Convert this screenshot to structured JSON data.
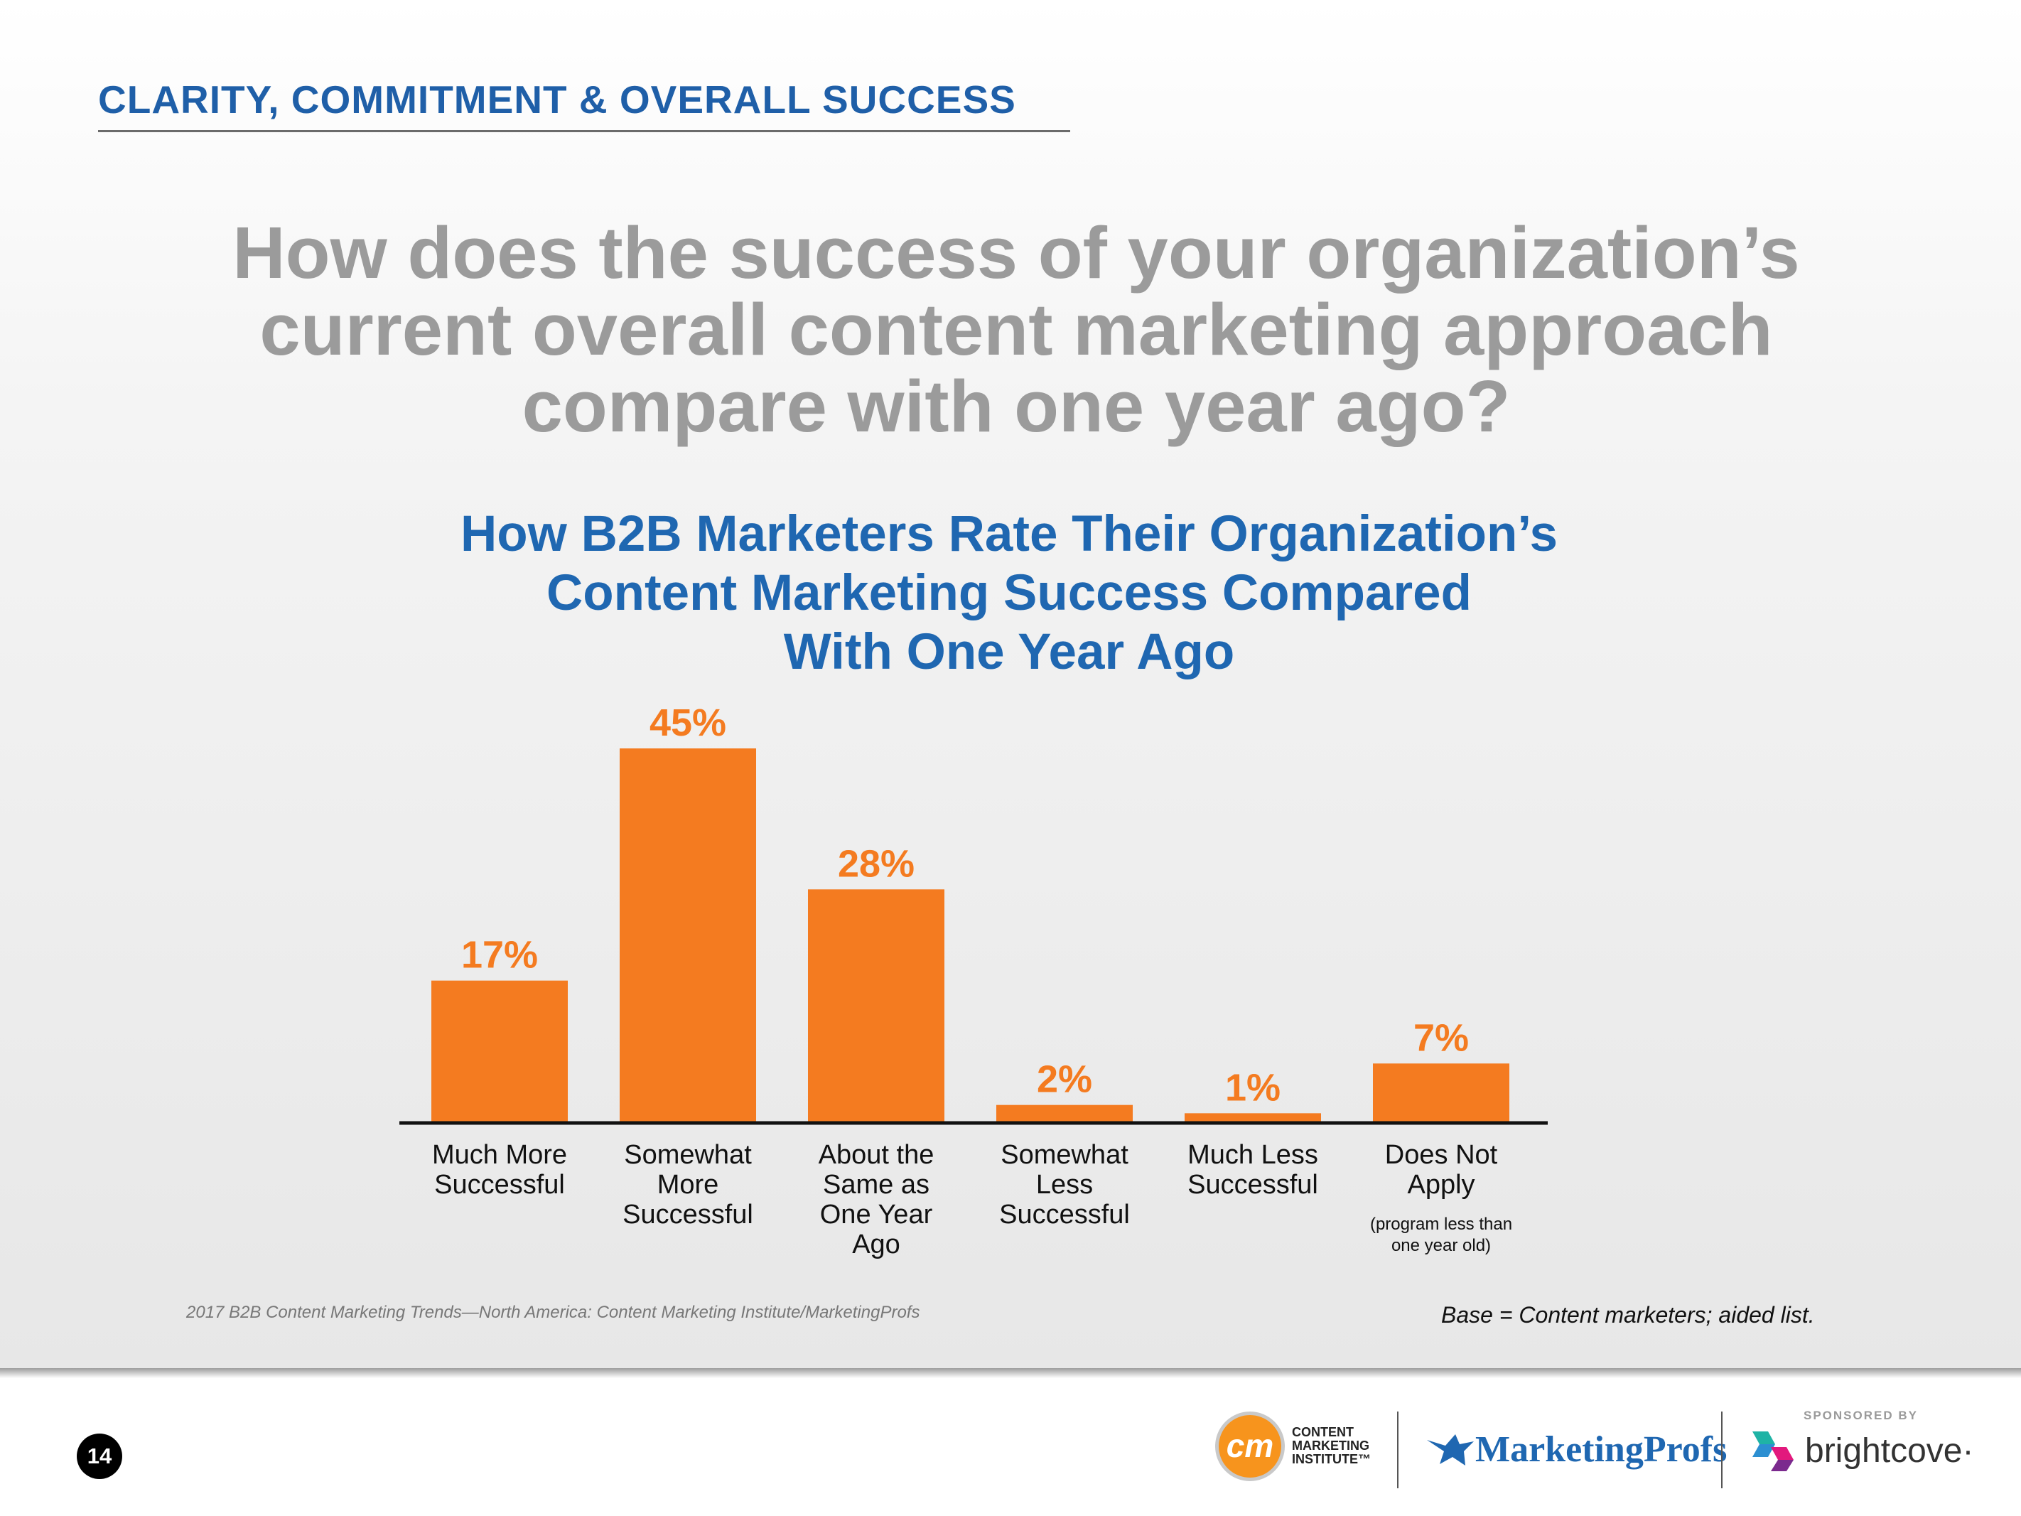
{
  "header": {
    "section_title": "CLARITY, COMMITMENT & OVERALL SUCCESS",
    "question_lines": [
      "How does the success of your organization’s",
      "current overall content marketing approach",
      "compare with one year ago?"
    ]
  },
  "chart_data": {
    "type": "bar",
    "title_lines": [
      "How B2B Marketers Rate Their Organization’s",
      "Content Marketing Success Compared",
      "With One Year Ago"
    ],
    "categories": [
      [
        "Much More",
        "Successful"
      ],
      [
        "Somewhat",
        "More",
        "Successful"
      ],
      [
        "About the",
        "Same as",
        "One Year",
        "Ago"
      ],
      [
        "Somewhat",
        "Less",
        "Successful"
      ],
      [
        "Much Less",
        "Successful"
      ],
      [
        "Does Not",
        "Apply"
      ]
    ],
    "category_notes": [
      "",
      "",
      "",
      "",
      "",
      "(program less than one year old)"
    ],
    "values": [
      17,
      45,
      28,
      2,
      1,
      7
    ],
    "value_labels": [
      "17%",
      "45%",
      "28%",
      "2%",
      "1%",
      "7%"
    ],
    "ylim": [
      0,
      45
    ],
    "grid": false,
    "legend": "none",
    "bar_color": "#f47b20",
    "label_color": "#f47b20"
  },
  "footer": {
    "source": "2017 B2B Content Marketing Trends—North America: Content Marketing Institute/MarketingProfs",
    "base_note": "Base = Content marketers; aided list.",
    "page_number": "14",
    "cmi_logo_mark": "cm",
    "cmi_logo_lines": [
      "CONTENT",
      "MARKETING",
      "INSTITUTE™"
    ],
    "marketingprofs_logo": "MarketingProfs",
    "sponsored_label": "SPONSORED BY",
    "sponsor_logo": "brightcove",
    "sponsor_logo_mark": "·"
  },
  "colors": {
    "section_title": "#1f5fa8",
    "question": "#9b9b9b",
    "chart_title": "#1f67b1",
    "bar": "#f47b20"
  },
  "icons": [
    "bird-icon",
    "brightcove-icon"
  ]
}
